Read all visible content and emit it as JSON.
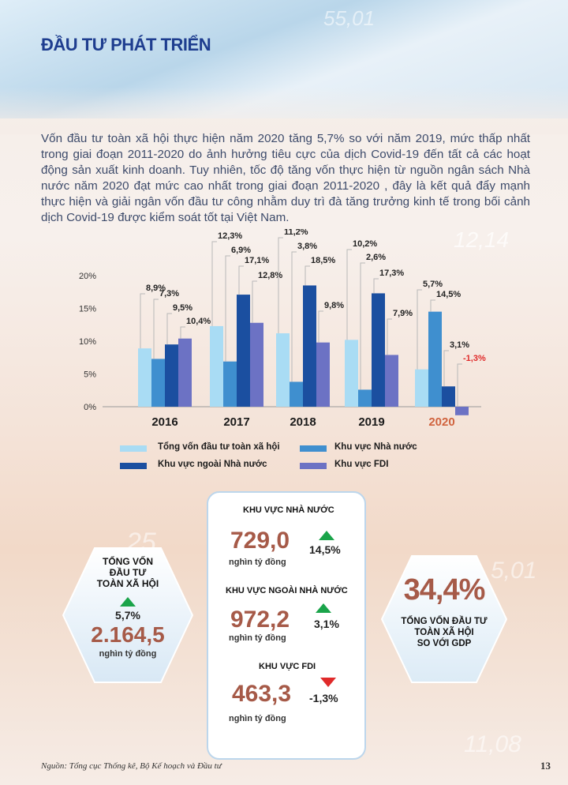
{
  "page_title": "ĐẦU TƯ PHÁT TRIỂN",
  "intro": "Vốn đầu tư toàn xã hội thực hiện năm 2020 tăng 5,7% so với năm 2019, mức thấp nhất trong giai đoạn 2011-2020 do ảnh hưởng tiêu cực của dịch Covid-19 đến tất cả các hoạt động sản xuất kinh doanh. Tuy nhiên, tốc độ tăng vốn thực hiện từ nguồn ngân sách Nhà nước năm 2020 đạt mức cao nhất trong giai đoạn 2011-2020 , đây là kết quả đẩy mạnh thực hiện và giải ngân vốn đầu tư công nhằm duy trì đà tăng trưởng kinh tế trong bối cảnh dịch Covid-19 được kiểm soát tốt tại Việt Nam.",
  "decorations": [
    "55,01",
    "12,14",
    "25",
    "5,01",
    "11,08"
  ],
  "chart_data": {
    "type": "bar",
    "categories": [
      "2016",
      "2017",
      "2018",
      "2019",
      "2020"
    ],
    "highlight_category": "2020",
    "ylim": [
      -2,
      20
    ],
    "yticks": [
      "0%",
      "5%",
      "10%",
      "15%",
      "20%"
    ],
    "series": [
      {
        "name": "Tổng vốn đầu tư toàn xã hội",
        "color": "#a9dcf4",
        "values": [
          8.9,
          12.3,
          11.2,
          10.2,
          5.7
        ],
        "labels": [
          "8,9%",
          "12,3%",
          "11,2%",
          "10,2%",
          "5,7%"
        ]
      },
      {
        "name": "Khu vực Nhà nước",
        "color": "#3f8fcf",
        "values": [
          7.3,
          6.9,
          3.8,
          2.6,
          14.5
        ],
        "labels": [
          "7,3%",
          "6,9%",
          "3,8%",
          "2,6%",
          "14,5%"
        ]
      },
      {
        "name": "Khu vực ngoài Nhà nước",
        "color": "#1b4fa0",
        "values": [
          9.5,
          17.1,
          18.5,
          17.3,
          3.1
        ],
        "labels": [
          "9,5%",
          "17,1%",
          "18,5%",
          "17,3%",
          "3,1%"
        ]
      },
      {
        "name": "Khu vực FDI",
        "color": "#6c72c4",
        "values": [
          10.4,
          12.8,
          9.8,
          7.9,
          -1.3
        ],
        "labels": [
          "10,4%",
          "12,8%",
          "9,8%",
          "7,9%",
          "-1,3%"
        ]
      }
    ]
  },
  "legend": {
    "item1": "Tổng vốn đầu tư toàn xã hội",
    "item2": "Khu vực Nhà nước",
    "item3": "Khu vực ngoài Nhà nước",
    "item4": "Khu vực FDI"
  },
  "left_hex": {
    "title_line1": "TỔNG VỐN",
    "title_line2": "ĐẦU TƯ",
    "title_line3": "TOÀN XÃ HỘI",
    "pct": "5,7%",
    "value": "2.164,5",
    "unit": "nghìn tỷ đồng"
  },
  "right_hex": {
    "value": "34,4%",
    "line1": "TỔNG VỐN ĐẦU TƯ",
    "line2": "TOÀN XÃ HỘI",
    "line3": "SO VỚI GDP"
  },
  "panel": {
    "s1_title": "KHU VỰC NHÀ NƯỚC",
    "s1_value": "729,0",
    "s1_unit": "nghìn tỷ đồng",
    "s1_pct": "14,5%",
    "s2_title": "KHU VỰC NGOÀI NHÀ NƯỚC",
    "s2_value": "972,2",
    "s2_unit": "nghìn tỷ đồng",
    "s2_pct": "3,1%",
    "s3_title": "KHU VỰC FDI",
    "s3_value": "463,3",
    "s3_unit": "nghìn tỷ đồng",
    "s3_pct": "-1,3%"
  },
  "colors": {
    "up": "#1aa44a",
    "down": "#e02a2a",
    "accent_number": "#a65a48",
    "title": "#1e3d8f"
  },
  "footer": {
    "source": "Nguồn: Tổng cục Thống kê, Bộ Kế hoạch và Đầu tư",
    "page_number": "13"
  }
}
